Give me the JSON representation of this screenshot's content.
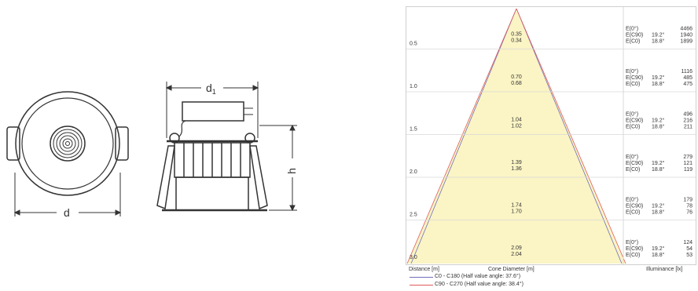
{
  "drawing": {
    "dim_d": "d",
    "dim_d1": "d",
    "dim_d1_sub": "1",
    "dim_h": "h"
  },
  "cone": {
    "rows": [
      {
        "distance": "0.5",
        "cone_c0": "0.35",
        "cone_c90": "0.34",
        "e0": "4466",
        "ec90": "1940",
        "ec0": "1899"
      },
      {
        "distance": "1.0",
        "cone_c0": "0.70",
        "cone_c90": "0.68",
        "e0": "1116",
        "ec90": "485",
        "ec0": "475"
      },
      {
        "distance": "1.5",
        "cone_c0": "1.04",
        "cone_c90": "1.02",
        "e0": "496",
        "ec90": "216",
        "ec0": "211"
      },
      {
        "distance": "2.0",
        "cone_c0": "1.39",
        "cone_c90": "1.36",
        "e0": "279",
        "ec90": "121",
        "ec0": "119"
      },
      {
        "distance": "2.5",
        "cone_c0": "1.74",
        "cone_c90": "1.70",
        "e0": "179",
        "ec90": "78",
        "ec0": "76"
      },
      {
        "distance": "3.0",
        "cone_c0": "2.09",
        "cone_c90": "2.04",
        "e0": "124",
        "ec90": "54",
        "ec0": "53"
      }
    ],
    "label_e0": "E(0°)",
    "label_ec90": "E(C90)",
    "label_ec0": "E(C0)",
    "angle_c90": "19.2°",
    "angle_c0": "18.8°",
    "footer_distance": "Distance [m]",
    "footer_cone": "Cone Diameter [m]",
    "footer_illuminance": "Illuminance [lx]",
    "legend_c0": "C0 - C180 (Half value angle: 37.6°)",
    "legend_c90": "C90 - C270 (Half value angle: 38.4°)",
    "colors": {
      "cone_fill": "#fbf4c4",
      "c0_line": "#6f6fbf",
      "c90_line": "#e05a5a",
      "grid": "#d8d8d8"
    }
  }
}
